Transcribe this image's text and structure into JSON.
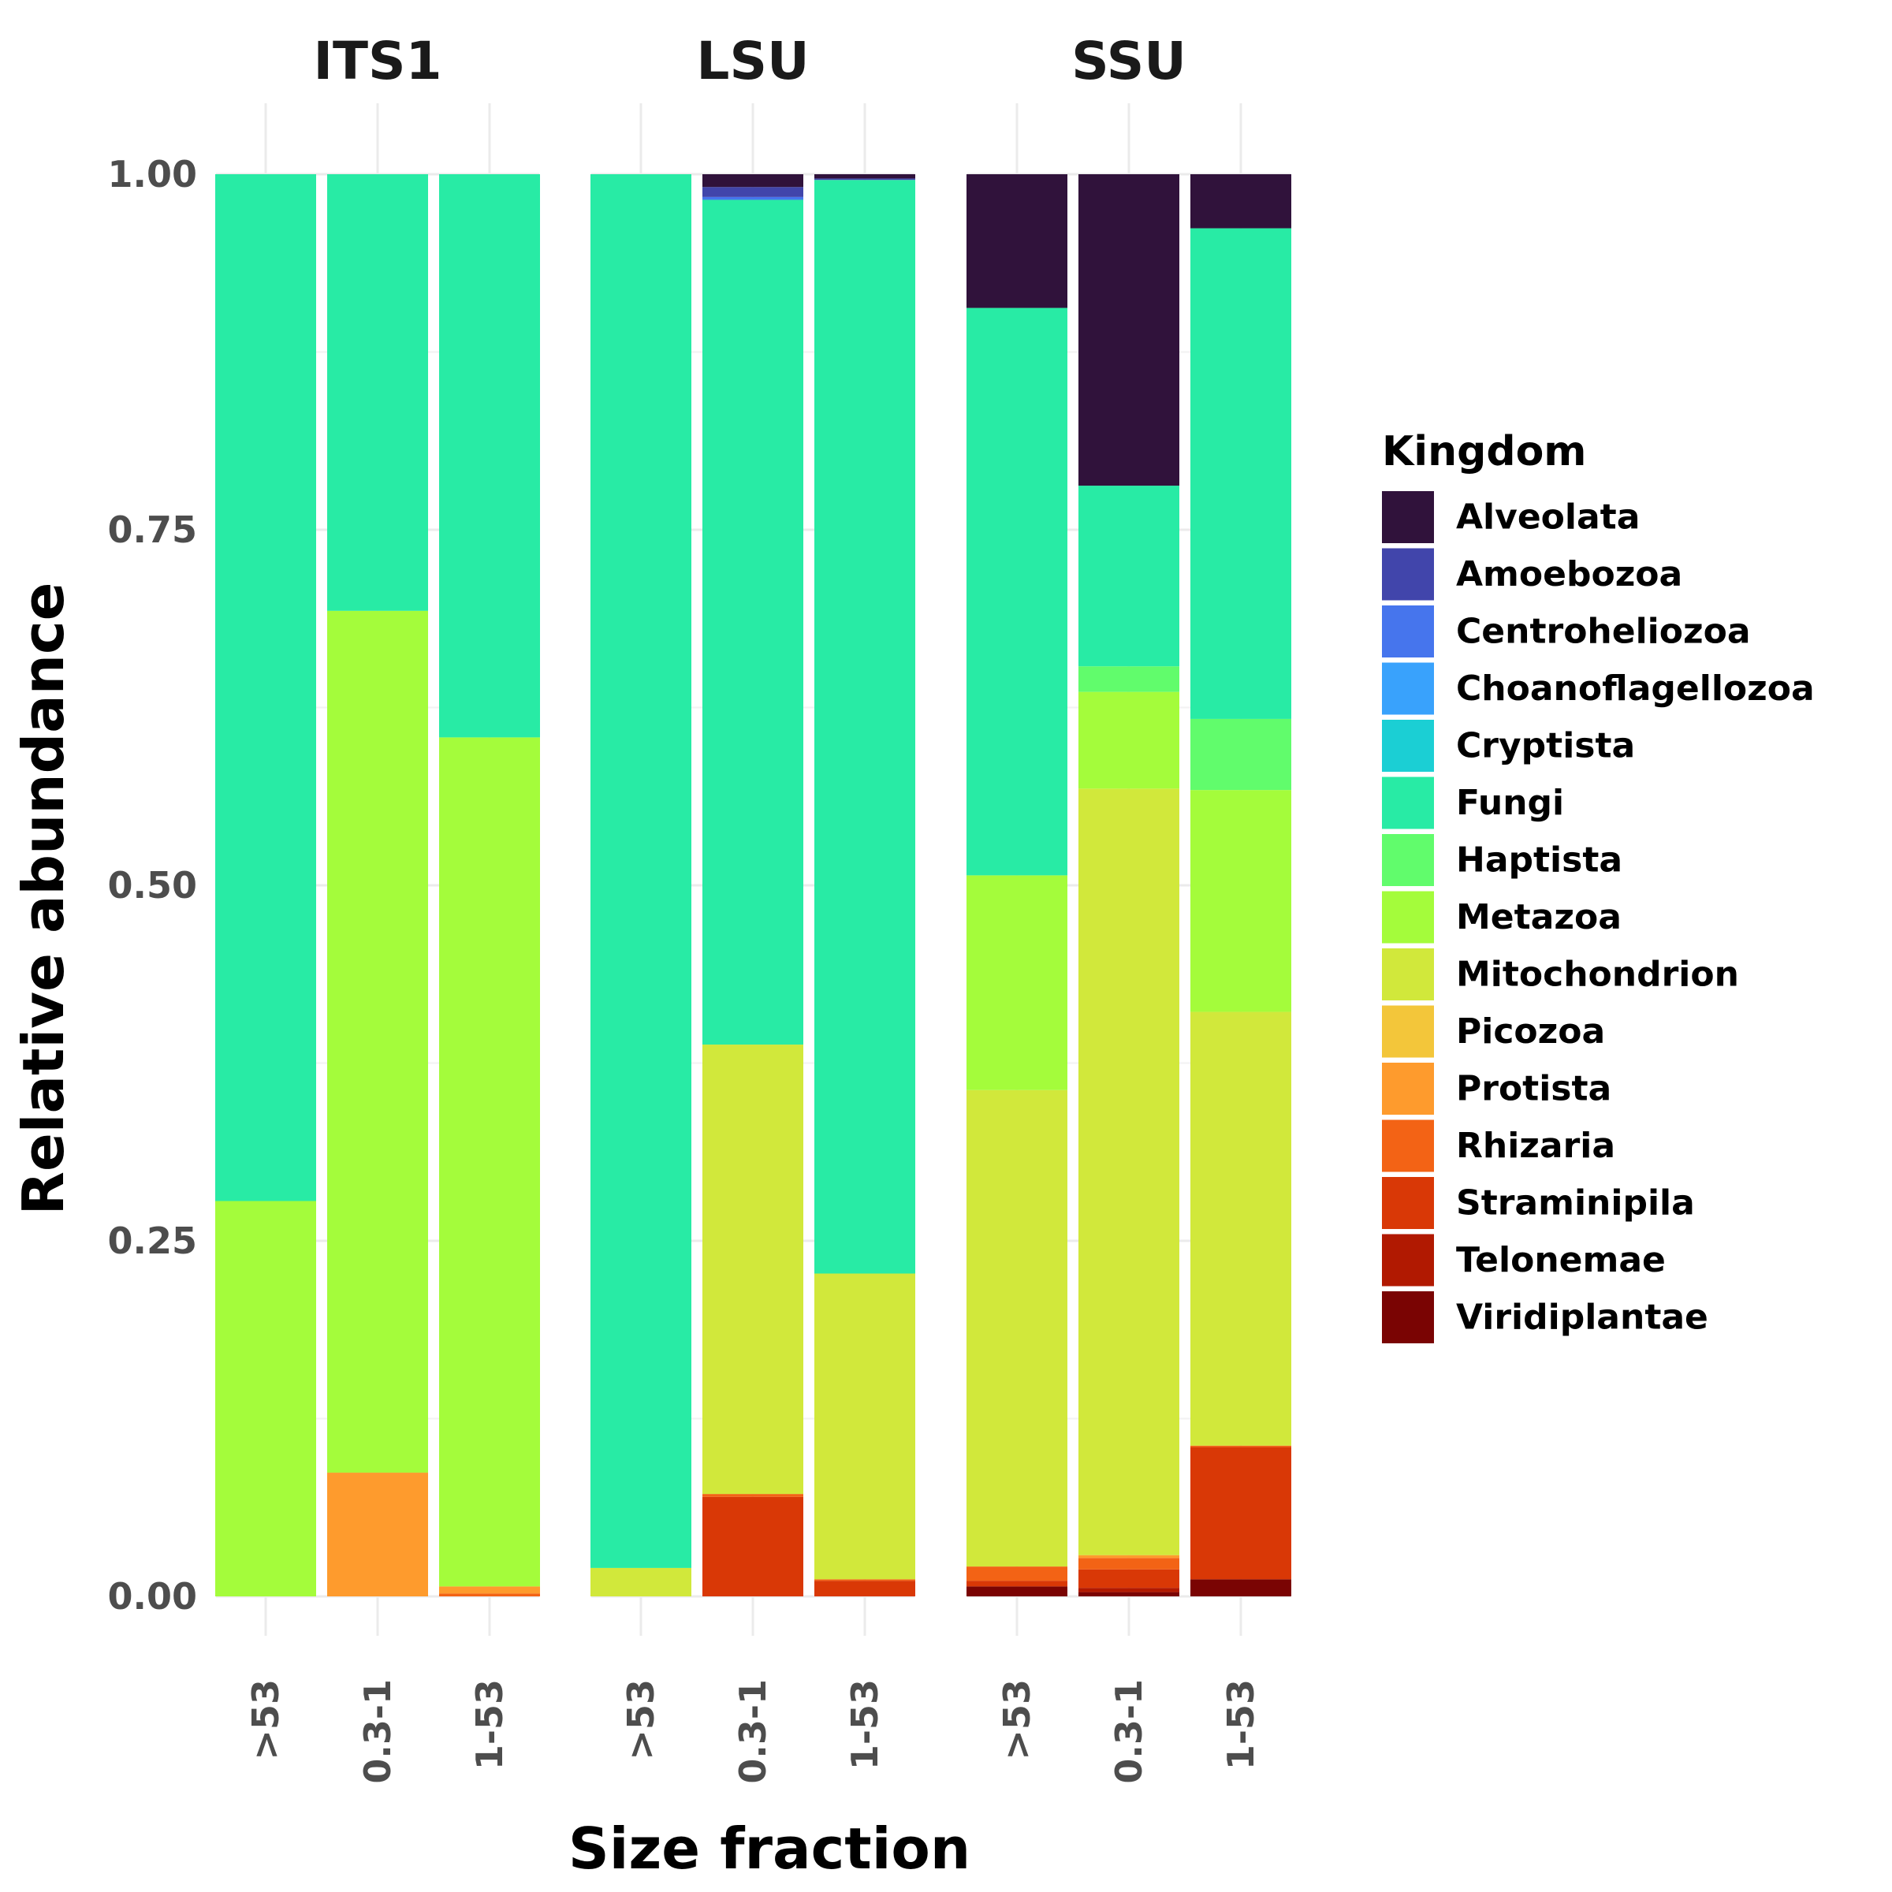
{
  "chart_data": {
    "type": "bar",
    "stacked": true,
    "facets": [
      "ITS1",
      "LSU",
      "SSU"
    ],
    "categories": [
      ">53",
      "0.3-1",
      "1-53"
    ],
    "xlabel": "Size fraction",
    "ylabel": "Relative abundance",
    "ylim": [
      0,
      1
    ],
    "yticks": [
      "0.00",
      "0.25",
      "0.50",
      "0.75",
      "1.00"
    ],
    "grid": true,
    "legend": {
      "title": "Kingdom",
      "position": "right",
      "entries": [
        "Alveolata",
        "Amoebozoa",
        "Centroheliozoa",
        "Choanoflagellozoa",
        "Cryptista",
        "Fungi",
        "Haptista",
        "Metazoa",
        "Mitochondrion",
        "Picozoa",
        "Protista",
        "Rhizaria",
        "Straminipila",
        "Telonemae",
        "Viridiplantae"
      ]
    },
    "colors": {
      "Alveolata": "#30123b",
      "Amoebozoa": "#4145ab",
      "Centroheliozoa": "#4675ed",
      "Choanoflagellozoa": "#39a2fc",
      "Cryptista": "#1bcfd4",
      "Fungi": "#28eba5",
      "Haptista": "#61fc6c",
      "Metazoa": "#a4fc3b",
      "Mitochondrion": "#d1e83b",
      "Picozoa": "#f3c63a",
      "Protista": "#fe9b2d",
      "Rhizaria": "#f36315",
      "Straminipila": "#d93806",
      "Telonemae": "#b11901",
      "Viridiplantae": "#7a0403"
    },
    "panels": [
      {
        "facet": "ITS1",
        "bars": [
          {
            "category": ">53",
            "values": {
              "Metazoa": 0.278,
              "Fungi": 0.722
            }
          },
          {
            "category": "0.3-1",
            "values": {
              "Protista": 0.087,
              "Metazoa": 0.606,
              "Fungi": 0.307
            }
          },
          {
            "category": "1-53",
            "values": {
              "Rhizaria": 0.002,
              "Protista": 0.005,
              "Metazoa": 0.597,
              "Fungi": 0.396
            }
          }
        ]
      },
      {
        "facet": "LSU",
        "bars": [
          {
            "category": ">53",
            "values": {
              "Mitochondrion": 0.02,
              "Fungi": 0.98
            }
          },
          {
            "category": "0.3-1",
            "values": {
              "Straminipila": 0.07,
              "Rhizaria": 0.002,
              "Mitochondrion": 0.316,
              "Fungi": 0.594,
              "Centroheliozoa": 0.002,
              "Amoebozoa": 0.007,
              "Alveolata": 0.009
            }
          },
          {
            "category": "1-53",
            "values": {
              "Straminipila": 0.011,
              "Rhizaria": 0.001,
              "Mitochondrion": 0.215,
              "Fungi": 0.769,
              "Amoebozoa": 0.001,
              "Alveolata": 0.003
            }
          }
        ]
      },
      {
        "facet": "SSU",
        "bars": [
          {
            "category": ">53",
            "values": {
              "Viridiplantae": 0.007,
              "Straminipila": 0.004,
              "Rhizaria": 0.01,
              "Mitochondrion": 0.335,
              "Metazoa": 0.151,
              "Fungi": 0.399,
              "Alveolata": 0.094
            }
          },
          {
            "category": "0.3-1",
            "values": {
              "Viridiplantae": 0.003,
              "Telonemae": 0.003,
              "Straminipila": 0.013,
              "Rhizaria": 0.008,
              "Protista": 0.002,
              "Mitochondrion": 0.539,
              "Metazoa": 0.068,
              "Haptista": 0.018,
              "Fungi": 0.127,
              "Alveolata": 0.219
            }
          },
          {
            "category": "1-53",
            "values": {
              "Viridiplantae": 0.012,
              "Straminipila": 0.093,
              "Rhizaria": 0.001,
              "Mitochondrion": 0.305,
              "Metazoa": 0.156,
              "Haptista": 0.05,
              "Fungi": 0.345,
              "Alveolata": 0.038
            }
          }
        ]
      }
    ]
  }
}
